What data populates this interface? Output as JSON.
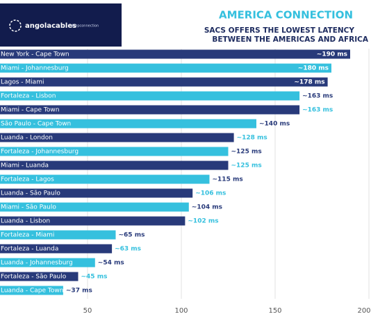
{
  "logo": {
    "brand": "angolacables",
    "tagline": "deepconnection"
  },
  "chart_data": {
    "type": "barh",
    "title": "AMERICA CONNECTION",
    "subtitle": [
      "SACS OFFERS THE LOWEST LATENCY",
      "BETWEEN THE AMERICAS AND AFRICA"
    ],
    "categories": [
      "New York - Cape Town",
      "Miami - Johannesburg",
      "Lagos - Miami",
      "Fortaleza - Lisbon",
      "Miami - Cape Town",
      "São Paulo - Cape Town",
      "Luanda - London",
      "Fortaleza - Johannesburg",
      "Miami - Luanda",
      "Fortaleza - Lagos",
      "Luanda - São Paulo",
      "Miami - São Paulo",
      "Luanda - Lisbon",
      "Fortaleza - Miami",
      "Fortaleza - Luanda",
      "Luanda - Johannesburg",
      "Fortaleza - São Paulo",
      "Luanda - Cape Town"
    ],
    "values": [
      190,
      180,
      178,
      163,
      163,
      140,
      128,
      125,
      125,
      115,
      106,
      104,
      102,
      65,
      63,
      54,
      45,
      37
    ],
    "value_labels": [
      "~190 ms",
      "~180 ms",
      "~178 ms",
      "~163 ms",
      "~163 ms",
      "~140 ms",
      "~128 ms",
      "~125 ms",
      "~125 ms",
      "~115 ms",
      "~106 ms",
      "~104 ms",
      "~102 ms",
      "~65 ms",
      "~63 ms",
      "~54 ms",
      "~45 ms",
      "~37 ms"
    ],
    "colors": [
      "#283a7a",
      "#35c0de"
    ],
    "xlim": [
      0,
      200
    ],
    "xticks": [
      50,
      100,
      150,
      200
    ],
    "grid": true
  }
}
